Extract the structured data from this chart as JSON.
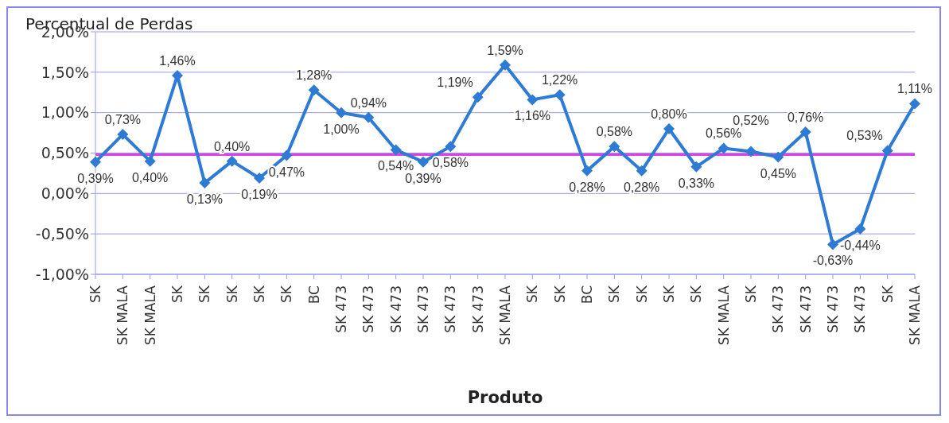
{
  "chart_data": {
    "type": "line",
    "title": "Percentual de Perdas",
    "xlabel": "Produto",
    "categories": [
      "SK",
      "SK MALA",
      "SK MALA",
      "SK",
      "SK",
      "SK",
      "SK",
      "SK",
      "BC",
      "SK 473",
      "SK 473",
      "SK 473",
      "SK 473",
      "SK 473",
      "SK 473",
      "SK MALA",
      "SK",
      "SK",
      "BC",
      "SK",
      "SK",
      "SK",
      "SK",
      "SK MALA",
      "SK",
      "SK 473",
      "SK 473",
      "SK 473",
      "SK 473",
      "SK",
      "SK MALA"
    ],
    "series": [
      {
        "color": "#2e7bd6",
        "values": [
          0.39,
          0.73,
          0.4,
          1.46,
          0.13,
          0.4,
          0.19,
          0.47,
          1.28,
          1.0,
          0.94,
          0.54,
          0.39,
          0.58,
          1.19,
          1.59,
          1.16,
          1.22,
          0.28,
          0.58,
          0.28,
          0.8,
          0.33,
          0.56,
          0.52,
          0.45,
          0.76,
          -0.63,
          -0.44,
          0.53,
          1.11
        ],
        "value_labels": [
          "0,39%",
          "0,73%",
          "0,40%",
          "1,46%",
          "0,13%",
          "0,40%",
          "0,19%",
          "0,47%",
          "1,28%",
          "1,00%",
          "0,94%",
          "0,54%",
          "0,39%",
          "0,58%",
          "1,19%",
          "1,59%",
          "1,16%",
          "1,22%",
          "0,28%",
          "0,58%",
          "0,28%",
          "0,80%",
          "0,33%",
          "0,56%",
          "0,52%",
          "0,45%",
          "0,76%",
          "-0,63%",
          "-0,44%",
          "0,53%",
          "1,11%"
        ]
      }
    ],
    "ylim": [
      -1,
      2
    ],
    "yticks": [
      {
        "value": -1,
        "label": "-1,00%"
      },
      {
        "value": -0.5,
        "label": "-0,50%"
      },
      {
        "value": 0,
        "label": "0,00%"
      },
      {
        "value": 0.5,
        "label": "0,50%"
      },
      {
        "value": 1,
        "label": "1,00%"
      },
      {
        "value": 1.5,
        "label": "1,50%"
      },
      {
        "value": 2,
        "label": "2,00%"
      }
    ],
    "ref_lines": [
      {
        "axis": "y",
        "value": 0.48,
        "color": "#e040e0"
      }
    ],
    "grid": "y",
    "legend": false,
    "marker": "diamond",
    "line_style": "solid"
  }
}
